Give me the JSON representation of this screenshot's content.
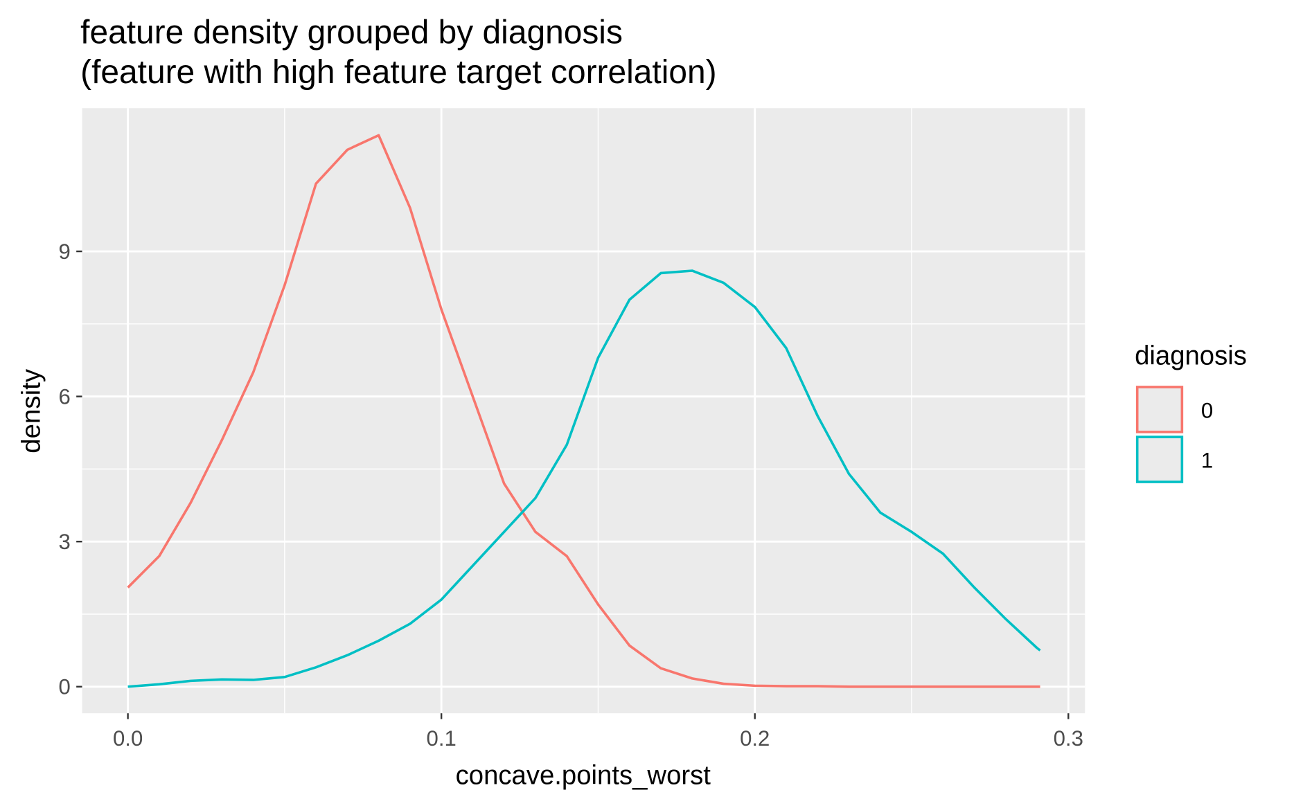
{
  "chart_data": {
    "type": "line",
    "title": "feature density grouped by diagnosis\n(feature with high feature target correlation)",
    "x_label": "concave.points_worst",
    "y_label": "density",
    "legend_title": "diagnosis",
    "legend_position": "right",
    "grid": true,
    "x": [
      0,
      0.01,
      0.02,
      0.03,
      0.04,
      0.05,
      0.06,
      0.07,
      0.08,
      0.09,
      0.1,
      0.11,
      0.12,
      0.13,
      0.14,
      0.15,
      0.16,
      0.17,
      0.18,
      0.19,
      0.2,
      0.21,
      0.22,
      0.23,
      0.24,
      0.25,
      0.26,
      0.27,
      0.28,
      0.29,
      0.291
    ],
    "series": [
      {
        "name": "0",
        "color": "#f8766d",
        "values": [
          2.05,
          2.7,
          3.8,
          5.1,
          6.5,
          8.3,
          10.4,
          11.1,
          11.4,
          9.9,
          7.8,
          6.0,
          4.2,
          3.2,
          2.7,
          1.7,
          0.85,
          0.38,
          0.17,
          0.06,
          0.02,
          0.01,
          0.01,
          0,
          0,
          0,
          0,
          0,
          0,
          0,
          0
        ]
      },
      {
        "name": "1",
        "color": "#00bfc4",
        "values": [
          0,
          0.05,
          0.12,
          0.15,
          0.14,
          0.2,
          0.4,
          0.65,
          0.95,
          1.3,
          1.8,
          2.5,
          3.2,
          3.9,
          5.0,
          6.8,
          8.0,
          8.55,
          8.6,
          8.35,
          7.85,
          7.0,
          5.6,
          4.4,
          3.6,
          3.2,
          2.75,
          2.05,
          1.4,
          0.8,
          0.75
        ]
      }
    ],
    "xlim": [
      -0.0146,
      0.3053
    ],
    "ylim": [
      -0.55,
      11.96
    ],
    "xticks": [
      {
        "value": 0,
        "label": "0.0"
      },
      0.1,
      0.2,
      0.3
    ],
    "yticks": [
      0,
      3,
      6,
      9
    ]
  }
}
